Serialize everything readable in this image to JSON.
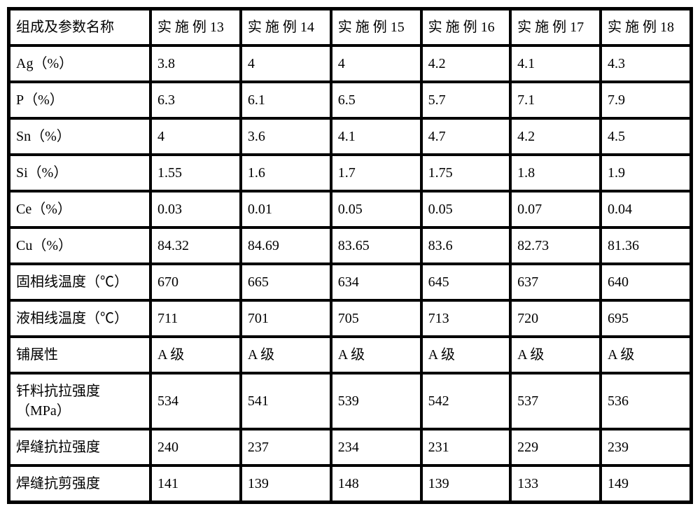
{
  "table": {
    "background_color": "#ffffff",
    "border_color": "#000000",
    "text_color": "#000000",
    "font_size_pt": 20,
    "columns": [
      {
        "key": "name",
        "label": "组成及参数名称"
      },
      {
        "key": "c13",
        "label": "实 施 例 13"
      },
      {
        "key": "c14",
        "label": "实 施 例 14"
      },
      {
        "key": "c15",
        "label": "实 施 例 15"
      },
      {
        "key": "c16",
        "label": "实 施 例 16"
      },
      {
        "key": "c17",
        "label": "实 施 例 17"
      },
      {
        "key": "c18",
        "label": "实 施 例 18"
      }
    ],
    "rows": [
      {
        "name": "Ag（%）",
        "c13": "3.8",
        "c14": "4",
        "c15": "4",
        "c16": "4.2",
        "c17": "4.1",
        "c18": "4.3"
      },
      {
        "name": "P（%）",
        "c13": "6.3",
        "c14": "6.1",
        "c15": "6.5",
        "c16": "5.7",
        "c17": "7.1",
        "c18": "7.9"
      },
      {
        "name": "Sn（%）",
        "c13": "4",
        "c14": "3.6",
        "c15": "4.1",
        "c16": "4.7",
        "c17": "4.2",
        "c18": "4.5"
      },
      {
        "name": "Si（%）",
        "c13": "1.55",
        "c14": "1.6",
        "c15": "1.7",
        "c16": "1.75",
        "c17": "1.8",
        "c18": "1.9"
      },
      {
        "name": "Ce（%）",
        "c13": "0.03",
        "c14": "0.01",
        "c15": "0.05",
        "c16": "0.05",
        "c17": "0.07",
        "c18": "0.04"
      },
      {
        "name": "Cu（%）",
        "c13": "84.32",
        "c14": "84.69",
        "c15": "83.65",
        "c16": "83.6",
        "c17": "82.73",
        "c18": "81.36"
      },
      {
        "name": "固相线温度（℃）",
        "c13": "670",
        "c14": "665",
        "c15": "634",
        "c16": "645",
        "c17": "637",
        "c18": "640"
      },
      {
        "name": "液相线温度（℃）",
        "c13": "711",
        "c14": "701",
        "c15": "705",
        "c16": "713",
        "c17": "720",
        "c18": "695"
      },
      {
        "name": "铺展性",
        "c13": "A 级",
        "c14": "A 级",
        "c15": "A 级",
        "c16": "A 级",
        "c17": "A 级",
        "c18": "A 级"
      },
      {
        "name": "钎料抗拉强度（MPa）",
        "c13": "534",
        "c14": "541",
        "c15": "539",
        "c16": "542",
        "c17": "537",
        "c18": "536"
      },
      {
        "name": "焊缝抗拉强度",
        "c13": "240",
        "c14": "237",
        "c15": "234",
        "c16": "231",
        "c17": "229",
        "c18": "239"
      },
      {
        "name": "焊缝抗剪强度",
        "c13": "141",
        "c14": "139",
        "c15": "148",
        "c16": "139",
        "c17": "133",
        "c18": "149"
      }
    ]
  }
}
